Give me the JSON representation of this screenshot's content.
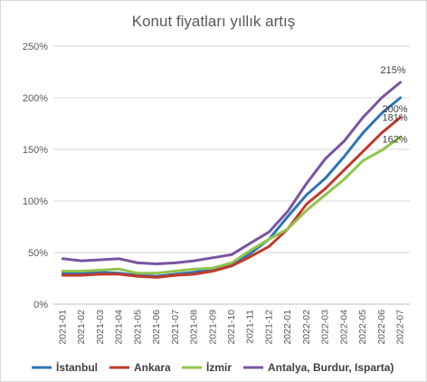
{
  "chart_data": {
    "type": "line",
    "title": "Konut fiyatları yıllık artış",
    "xlabel": "",
    "ylabel": "",
    "ylim": [
      0,
      250
    ],
    "ytick_labels": [
      "0%",
      "50%",
      "100%",
      "150%",
      "200%",
      "250%"
    ],
    "yticks": [
      0,
      50,
      100,
      150,
      200,
      250
    ],
    "grid": true,
    "legend_position": "bottom",
    "categories": [
      "2021-01",
      "2021-02",
      "2021-03",
      "2021-04",
      "2021-05",
      "2021-06",
      "2021-07",
      "2021-08",
      "2021-09",
      "2021-10",
      "2021-11",
      "2021-12",
      "2022-01",
      "2022-02",
      "2022-03",
      "2022-04",
      "2022-05",
      "2022-06",
      "2022-07"
    ],
    "series": [
      {
        "name": "İstanbul",
        "color": "#2e75b6",
        "values": [
          30,
          30,
          31,
          30,
          28,
          27,
          29,
          31,
          34,
          39,
          49,
          63,
          85,
          106,
          122,
          143,
          166,
          185,
          200
        ]
      },
      {
        "name": "Ankara",
        "color": "#c0392b",
        "values": [
          28,
          28,
          29,
          29,
          27,
          26,
          28,
          29,
          32,
          37,
          46,
          56,
          73,
          97,
          112,
          130,
          148,
          166,
          181
        ]
      },
      {
        "name": "İzmir",
        "color": "#92c34f",
        "values": [
          32,
          32,
          33,
          34,
          30,
          30,
          32,
          34,
          35,
          40,
          52,
          63,
          73,
          91,
          106,
          121,
          139,
          149,
          162
        ]
      },
      {
        "name": "Antalya, Burdur, Isparta)",
        "color": "#7855a0",
        "values": [
          44,
          42,
          43,
          44,
          40,
          39,
          40,
          42,
          45,
          48,
          59,
          70,
          90,
          117,
          141,
          158,
          181,
          200,
          215
        ]
      }
    ],
    "data_labels": [
      {
        "series": 3,
        "text": "215%"
      },
      {
        "series": 0,
        "text": "200%"
      },
      {
        "series": 1,
        "text": "181%"
      },
      {
        "series": 2,
        "text": "162%"
      }
    ]
  }
}
